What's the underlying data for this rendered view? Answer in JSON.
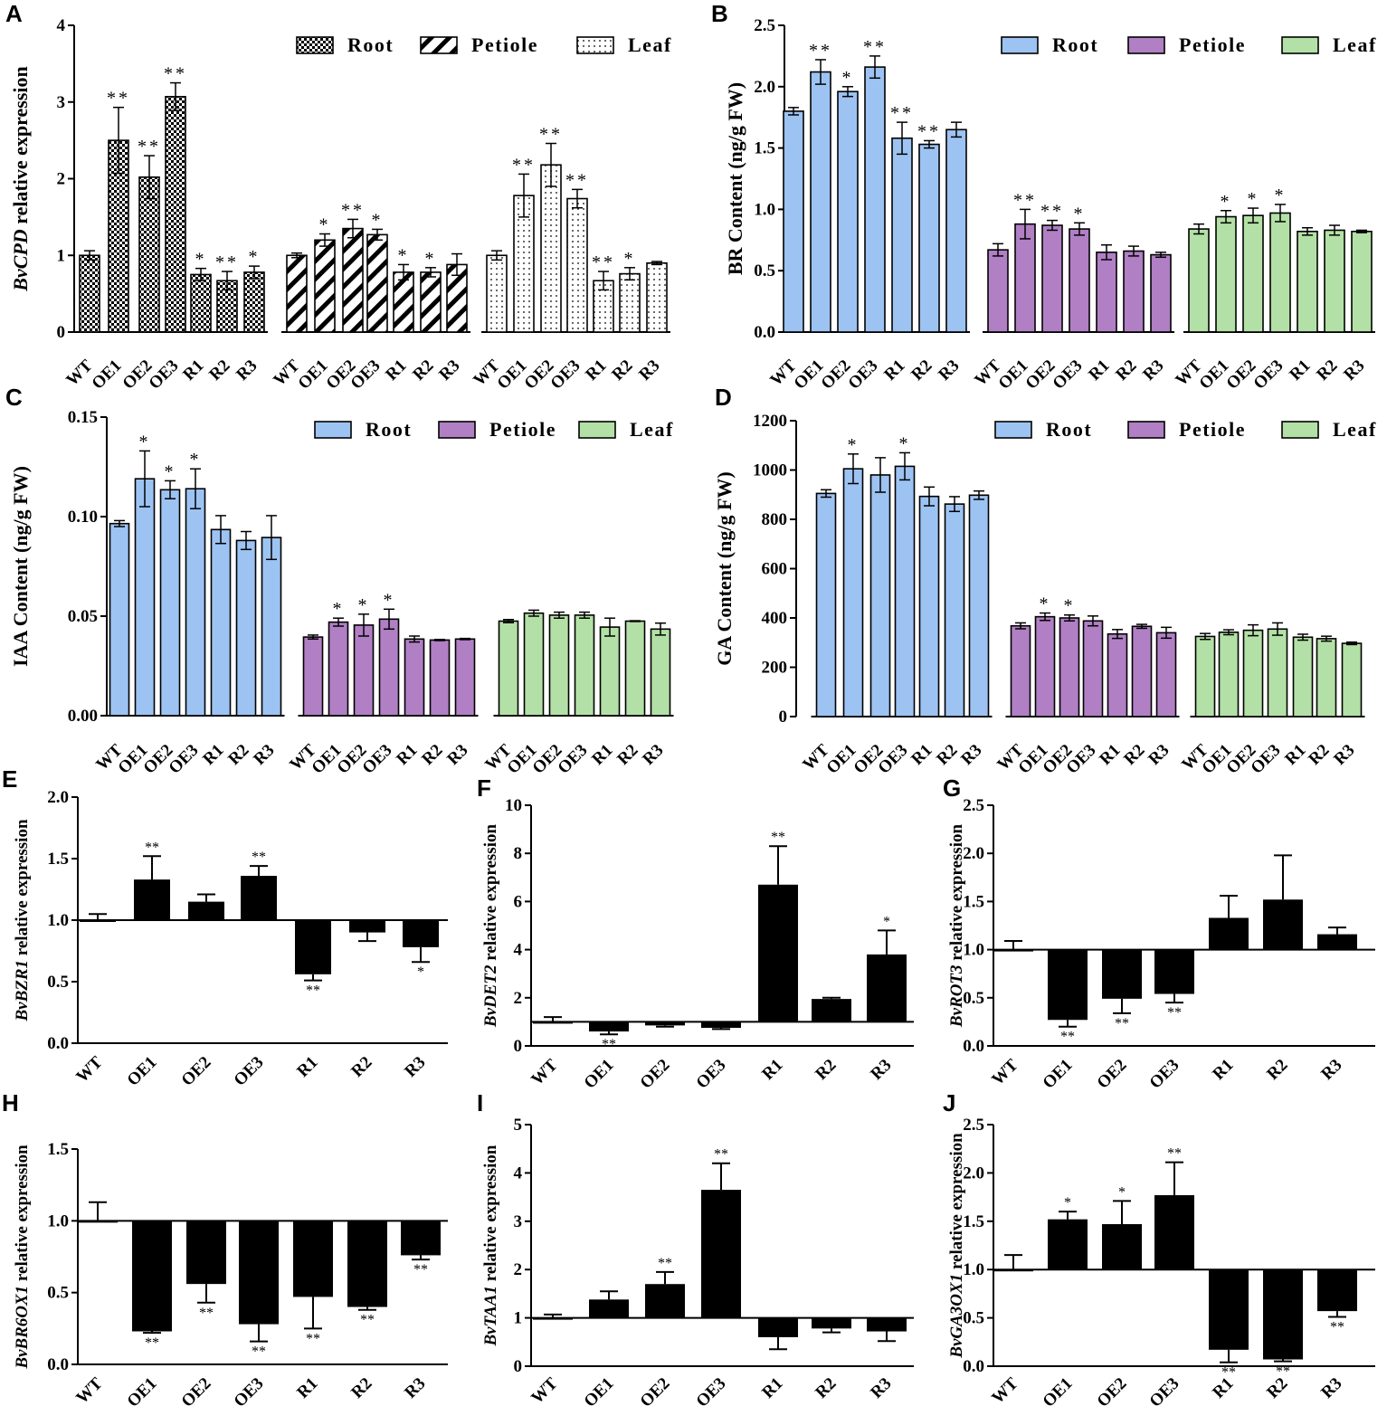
{
  "figure": {
    "categories": [
      "WT",
      "OE1",
      "OE2",
      "OE3",
      "R1",
      "R2",
      "R3"
    ],
    "tissues": [
      "Root",
      "Petiole",
      "Leaf"
    ],
    "colors": {
      "root": "#9dc3f2",
      "petiole": "#b07fc4",
      "leaf": "#b3e0a6",
      "black": "#000000"
    }
  },
  "chart_data": [
    {
      "id": "A",
      "label": "A",
      "type": "bar",
      "ylabel_italic": "BvCPD",
      "ylabel_rest": " relative expression",
      "ylim": [
        0,
        4
      ],
      "yticks": [
        "0",
        "1",
        "2",
        "3",
        "4"
      ],
      "legend": [
        "Root",
        "Petiole",
        "Leaf"
      ],
      "patterns": [
        "checker",
        "diagonal",
        "dots"
      ],
      "series": [
        {
          "name": "Root",
          "values": [
            1.0,
            2.5,
            2.02,
            3.07,
            0.75,
            0.67,
            0.78
          ],
          "errors": [
            0.06,
            0.43,
            0.28,
            0.18,
            0.08,
            0.12,
            0.08
          ],
          "sig": [
            "",
            "**",
            "**",
            "**",
            "*",
            "**",
            "*"
          ]
        },
        {
          "name": "Petiole",
          "values": [
            1.0,
            1.2,
            1.35,
            1.27,
            0.78,
            0.78,
            0.88
          ],
          "errors": [
            0.03,
            0.08,
            0.12,
            0.07,
            0.1,
            0.06,
            0.14
          ],
          "sig": [
            "",
            "*",
            "**",
            "*",
            "*",
            "*",
            ""
          ]
        },
        {
          "name": "Leaf",
          "values": [
            1.0,
            1.78,
            2.18,
            1.74,
            0.67,
            0.76,
            0.9
          ],
          "errors": [
            0.06,
            0.28,
            0.28,
            0.12,
            0.12,
            0.08,
            0.02
          ],
          "sig": [
            "",
            "**",
            "**",
            "**",
            "**",
            "*",
            ""
          ]
        }
      ]
    },
    {
      "id": "B",
      "label": "B",
      "type": "bar",
      "ylabel": "BR Content (ng/g FW)",
      "ylim": [
        0,
        2.5
      ],
      "yticks": [
        "0.0",
        "0.5",
        "1.0",
        "1.5",
        "2.0",
        "2.5"
      ],
      "legend": [
        "Root",
        "Petiole",
        "Leaf"
      ],
      "series": [
        {
          "name": "Root",
          "values": [
            1.8,
            2.12,
            1.96,
            2.16,
            1.58,
            1.53,
            1.65
          ],
          "errors": [
            0.03,
            0.1,
            0.04,
            0.09,
            0.13,
            0.03,
            0.06
          ],
          "sig": [
            "",
            "**",
            "*",
            "**",
            "**",
            "**",
            ""
          ]
        },
        {
          "name": "Petiole",
          "values": [
            0.67,
            0.88,
            0.87,
            0.84,
            0.65,
            0.66,
            0.63
          ],
          "errors": [
            0.05,
            0.12,
            0.04,
            0.05,
            0.06,
            0.04,
            0.02
          ],
          "sig": [
            "",
            "**",
            "**",
            "*",
            "",
            "",
            ""
          ]
        },
        {
          "name": "Leaf",
          "values": [
            0.84,
            0.94,
            0.95,
            0.97,
            0.82,
            0.83,
            0.82
          ],
          "errors": [
            0.04,
            0.05,
            0.06,
            0.07,
            0.03,
            0.04,
            0.01
          ],
          "sig": [
            "",
            "*",
            "*",
            "*",
            "",
            "",
            ""
          ]
        }
      ]
    },
    {
      "id": "C",
      "label": "C",
      "type": "bar",
      "ylabel": "IAA Content (ng/g FW)",
      "ylim": [
        0,
        0.15
      ],
      "yticks": [
        "0.00",
        "0.05",
        "0.10",
        "0.15"
      ],
      "legend": [
        "Root",
        "Petiole",
        "Leaf"
      ],
      "series": [
        {
          "name": "Root",
          "values": [
            0.0965,
            0.119,
            0.1135,
            0.114,
            0.0935,
            0.088,
            0.0895
          ],
          "errors": [
            0.0015,
            0.014,
            0.0045,
            0.01,
            0.007,
            0.0045,
            0.011
          ],
          "sig": [
            "",
            "*",
            "*",
            "*",
            "",
            "",
            ""
          ]
        },
        {
          "name": "Petiole",
          "values": [
            0.0395,
            0.047,
            0.0455,
            0.0485,
            0.0385,
            0.038,
            0.0385
          ],
          "errors": [
            0.001,
            0.002,
            0.0055,
            0.005,
            0.0015,
            0.0003,
            0.0003
          ],
          "sig": [
            "",
            "*",
            "*",
            "*",
            "",
            "",
            ""
          ]
        },
        {
          "name": "Leaf",
          "values": [
            0.0475,
            0.0515,
            0.0505,
            0.0505,
            0.0445,
            0.0475,
            0.0435
          ],
          "errors": [
            0.0008,
            0.0015,
            0.0015,
            0.0015,
            0.0045,
            0.0002,
            0.003
          ],
          "sig": [
            "",
            "",
            "",
            "",
            "",
            "",
            ""
          ]
        }
      ]
    },
    {
      "id": "D",
      "label": "D",
      "type": "bar",
      "ylabel": "GA Content (ng/g FW)",
      "ylim": [
        0,
        1200
      ],
      "yticks": [
        "0",
        "200",
        "400",
        "600",
        "800",
        "1000",
        "1200"
      ],
      "legend": [
        "Root",
        "Petiole",
        "Leaf"
      ],
      "series": [
        {
          "name": "Root",
          "values": [
            905,
            1005,
            980,
            1015,
            893,
            862,
            898
          ],
          "errors": [
            15,
            60,
            70,
            55,
            38,
            30,
            17
          ],
          "sig": [
            "",
            "*",
            "",
            "*",
            "",
            "",
            ""
          ]
        },
        {
          "name": "Petiole",
          "values": [
            368,
            405,
            400,
            388,
            335,
            366,
            340
          ],
          "errors": [
            12,
            15,
            12,
            20,
            18,
            8,
            22
          ],
          "sig": [
            "",
            "*",
            "*",
            "",
            "",
            "",
            ""
          ]
        },
        {
          "name": "Leaf",
          "values": [
            325,
            342,
            350,
            355,
            322,
            316,
            297
          ],
          "errors": [
            12,
            10,
            22,
            25,
            12,
            10,
            5
          ],
          "sig": [
            "",
            "",
            "",
            "",
            "",
            "",
            ""
          ]
        }
      ]
    },
    {
      "id": "E",
      "label": "E",
      "type": "bar",
      "ylabel_italic": "BvBZR1",
      "ylabel_rest": " relative expression",
      "baseline": 1.0,
      "ylim": [
        0,
        2.0
      ],
      "yticks": [
        "0.0",
        "0.5",
        "1.0",
        "1.5",
        "2.0"
      ],
      "values": [
        1.0,
        1.33,
        1.15,
        1.36,
        0.56,
        0.9,
        0.78
      ],
      "errors": [
        0.05,
        0.19,
        0.06,
        0.08,
        0.05,
        0.07,
        0.12
      ],
      "sig": [
        "",
        "**",
        "",
        "**",
        "**",
        "",
        "*"
      ]
    },
    {
      "id": "F",
      "label": "F",
      "type": "bar",
      "ylabel_italic": "BvDET2",
      "ylabel_rest": " relative expression",
      "baseline": 1.0,
      "ylim": [
        0,
        10
      ],
      "yticks": [
        "0",
        "2",
        "4",
        "6",
        "8",
        "10"
      ],
      "values": [
        1.0,
        0.6,
        0.85,
        0.75,
        6.7,
        1.95,
        3.8
      ],
      "errors": [
        0.2,
        0.12,
        0.05,
        0.05,
        1.6,
        0.05,
        1.0
      ],
      "sig": [
        "",
        "**",
        "",
        "",
        "**",
        "",
        "*"
      ]
    },
    {
      "id": "G",
      "label": "G",
      "type": "bar",
      "ylabel_italic": "BvROT3",
      "ylabel_rest": " relative expression",
      "baseline": 1.0,
      "ylim": [
        0,
        2.5
      ],
      "yticks": [
        "0.0",
        "0.5",
        "1.0",
        "1.5",
        "2.0",
        "2.5"
      ],
      "values": [
        1.0,
        0.27,
        0.49,
        0.54,
        1.33,
        1.52,
        1.16
      ],
      "errors": [
        0.09,
        0.07,
        0.15,
        0.09,
        0.23,
        0.46,
        0.07
      ],
      "sig": [
        "",
        "**",
        "**",
        "**",
        "",
        "",
        ""
      ]
    },
    {
      "id": "H",
      "label": "H",
      "type": "bar",
      "ylabel_italic": "BvBR6OX1",
      "ylabel_rest": " relative expression",
      "baseline": 1.0,
      "ylim": [
        0,
        1.5
      ],
      "yticks": [
        "0.0",
        "0.5",
        "1.0",
        "1.5"
      ],
      "values": [
        1.0,
        0.23,
        0.56,
        0.28,
        0.47,
        0.4,
        0.76
      ],
      "errors": [
        0.13,
        0.01,
        0.13,
        0.12,
        0.22,
        0.02,
        0.03
      ],
      "sig": [
        "",
        "**",
        "**",
        "**",
        "**",
        "**",
        "**"
      ]
    },
    {
      "id": "I",
      "label": "I",
      "type": "bar",
      "ylabel_italic": "BvTAA1",
      "ylabel_rest": " relative expression",
      "baseline": 1.0,
      "ylim": [
        0,
        5
      ],
      "yticks": [
        "0",
        "1",
        "2",
        "3",
        "4",
        "5"
      ],
      "values": [
        1.0,
        1.38,
        1.7,
        3.65,
        0.6,
        0.78,
        0.72
      ],
      "errors": [
        0.07,
        0.17,
        0.25,
        0.55,
        0.25,
        0.08,
        0.2
      ],
      "sig": [
        "",
        "",
        "**",
        "**",
        "",
        "",
        ""
      ]
    },
    {
      "id": "J",
      "label": "J",
      "type": "bar",
      "ylabel_italic": "BvGA3OX1",
      "ylabel_rest": " relative expression",
      "baseline": 1.0,
      "ylim": [
        0,
        2.5
      ],
      "yticks": [
        "0.0",
        "0.5",
        "1.0",
        "1.5",
        "2.0",
        "2.5"
      ],
      "values": [
        1.0,
        1.52,
        1.47,
        1.77,
        0.17,
        0.07,
        0.57
      ],
      "errors": [
        0.15,
        0.08,
        0.24,
        0.34,
        0.13,
        0.02,
        0.06
      ],
      "sig": [
        "",
        "*",
        "*",
        "**",
        "**",
        "**",
        "**"
      ]
    }
  ]
}
